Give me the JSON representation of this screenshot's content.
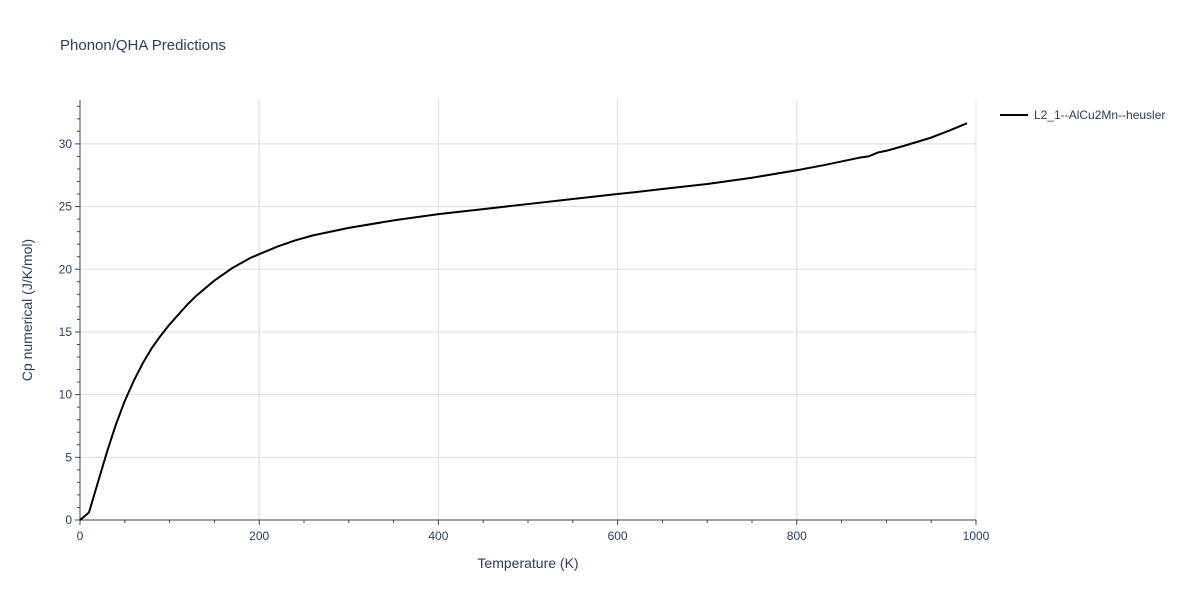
{
  "chart_data": {
    "type": "line",
    "title": "Phonon/QHA Predictions",
    "xlabel": "Temperature (K)",
    "ylabel": "Cp numerical (J/K/mol)",
    "xlim": [
      0,
      1000
    ],
    "ylim": [
      0,
      33.5
    ],
    "x_ticks": [
      0,
      200,
      400,
      600,
      800,
      1000
    ],
    "y_ticks": [
      0,
      5,
      10,
      15,
      20,
      25,
      30
    ],
    "grid": true,
    "legend_position": "top-right",
    "colors": {
      "line": "#000000",
      "grid": "#dddddd",
      "axis": "#444444",
      "text": "#2a3f5f"
    },
    "series": [
      {
        "name": "L2_1--AlCu2Mn--heusler",
        "x": [
          0,
          10,
          20,
          30,
          40,
          50,
          60,
          70,
          80,
          90,
          100,
          110,
          120,
          130,
          140,
          150,
          160,
          170,
          180,
          190,
          200,
          220,
          240,
          260,
          280,
          300,
          350,
          400,
          450,
          500,
          550,
          600,
          620,
          650,
          700,
          750,
          800,
          830,
          860,
          870,
          880,
          890,
          900,
          920,
          950,
          970,
          990
        ],
        "y": [
          0,
          0.6,
          3.0,
          5.4,
          7.6,
          9.5,
          11.1,
          12.5,
          13.7,
          14.7,
          15.6,
          16.4,
          17.2,
          17.9,
          18.5,
          19.1,
          19.6,
          20.1,
          20.5,
          20.9,
          21.2,
          21.8,
          22.3,
          22.7,
          23.0,
          23.3,
          23.9,
          24.4,
          24.8,
          25.2,
          25.6,
          26.0,
          26.15,
          26.4,
          26.8,
          27.3,
          27.9,
          28.3,
          28.75,
          28.9,
          29.0,
          29.3,
          29.45,
          29.85,
          30.5,
          31.05,
          31.65
        ]
      }
    ]
  }
}
